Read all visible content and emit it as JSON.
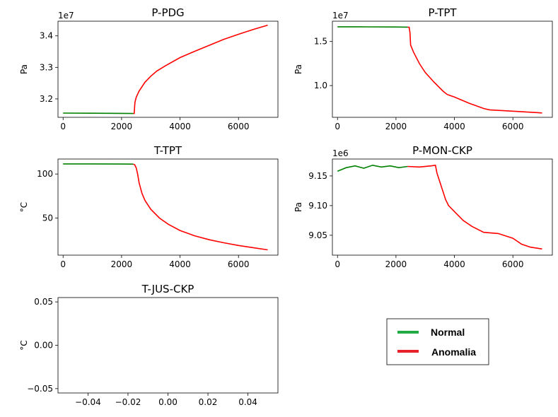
{
  "chart_data": [
    {
      "type": "line",
      "title": "P-PDG",
      "ylabel": "Pa",
      "y_multiplier": "1e7",
      "xlim": [
        -175,
        7350
      ],
      "ylim": [
        3.1415,
        3.4465
      ],
      "xticks": [
        "0",
        "2000",
        "4000",
        "6000"
      ],
      "yticks": [
        "3.2",
        "3.3",
        "3.4"
      ],
      "series": [
        {
          "name": "Normal",
          "color": "#008000",
          "points": [
            [
              0,
              3.155
            ],
            [
              1000,
              3.1545
            ],
            [
              2000,
              3.154
            ],
            [
              2400,
              3.1535
            ]
          ]
        },
        {
          "name": "Anomalia",
          "color": "#ff0000",
          "points": [
            [
              2400,
              3.1535
            ],
            [
              2430,
              3.1535
            ],
            [
              2440,
              3.165
            ],
            [
              2450,
              3.18
            ],
            [
              2460,
              3.19
            ],
            [
              2500,
              3.205
            ],
            [
              2600,
              3.225
            ],
            [
              2800,
              3.253
            ],
            [
              3000,
              3.272
            ],
            [
              3200,
              3.288
            ],
            [
              3500,
              3.305
            ],
            [
              4000,
              3.331
            ],
            [
              4500,
              3.351
            ],
            [
              5000,
              3.37
            ],
            [
              5500,
              3.389
            ],
            [
              6000,
              3.405
            ],
            [
              6500,
              3.42
            ],
            [
              7000,
              3.434
            ]
          ]
        }
      ]
    },
    {
      "type": "line",
      "title": "P-TPT",
      "ylabel": "Pa",
      "y_multiplier": "1e7",
      "xlim": [
        -175,
        7350
      ],
      "ylim": [
        0.64,
        1.73
      ],
      "xticks": [
        "0",
        "2000",
        "4000",
        "6000"
      ],
      "yticks": [
        "1.0",
        "1.5"
      ],
      "series": [
        {
          "name": "Normal",
          "color": "#008000",
          "points": [
            [
              0,
              1.667
            ],
            [
              1000,
              1.666
            ],
            [
              2000,
              1.664
            ],
            [
              2400,
              1.663
            ]
          ]
        },
        {
          "name": "Anomalia",
          "color": "#ff0000",
          "points": [
            [
              2400,
              1.663
            ],
            [
              2450,
              1.662
            ],
            [
              2480,
              1.6
            ],
            [
              2500,
              1.46
            ],
            [
              2600,
              1.38
            ],
            [
              2800,
              1.25
            ],
            [
              3000,
              1.15
            ],
            [
              3300,
              1.04
            ],
            [
              3600,
              0.94
            ],
            [
              3750,
              0.9
            ],
            [
              4000,
              0.87
            ],
            [
              4500,
              0.8
            ],
            [
              5000,
              0.74
            ],
            [
              5200,
              0.725
            ],
            [
              6000,
              0.71
            ],
            [
              7000,
              0.69
            ]
          ]
        }
      ]
    },
    {
      "type": "line",
      "title": "T-TPT",
      "ylabel": "°C",
      "xlim": [
        -175,
        7350
      ],
      "ylim": [
        8,
        117
      ],
      "xticks": [
        "0",
        "2000",
        "4000",
        "6000"
      ],
      "yticks": [
        "50",
        "100"
      ],
      "series": [
        {
          "name": "Normal",
          "color": "#008000",
          "points": [
            [
              0,
              111.5
            ],
            [
              1000,
              111.5
            ],
            [
              2000,
              111.3
            ],
            [
              2400,
              111.2
            ]
          ]
        },
        {
          "name": "Anomalia",
          "color": "#ff0000",
          "points": [
            [
              2400,
              111.2
            ],
            [
              2450,
              110.5
            ],
            [
              2500,
              107
            ],
            [
              2550,
              100
            ],
            [
              2600,
              90
            ],
            [
              2700,
              78
            ],
            [
              2800,
              70
            ],
            [
              3000,
              60
            ],
            [
              3300,
              50
            ],
            [
              3600,
              43
            ],
            [
              4000,
              36
            ],
            [
              4500,
              30
            ],
            [
              5000,
              25.5
            ],
            [
              5500,
              22
            ],
            [
              6000,
              19
            ],
            [
              6500,
              16.5
            ],
            [
              7000,
              14
            ]
          ]
        }
      ]
    },
    {
      "type": "line",
      "title": "P-MON-CKP",
      "ylabel": "Pa",
      "y_multiplier": "1e6",
      "xlim": [
        -175,
        7350
      ],
      "ylim": [
        9.0165,
        9.1785
      ],
      "xticks": [
        "0",
        "2000",
        "4000",
        "6000"
      ],
      "yticks": [
        "9.05",
        "9.10",
        "9.15"
      ],
      "series": [
        {
          "name": "Normal",
          "color": "#008000",
          "points": [
            [
              0,
              9.158
            ],
            [
              300,
              9.164
            ],
            [
              600,
              9.167
            ],
            [
              900,
              9.163
            ],
            [
              1200,
              9.168
            ],
            [
              1500,
              9.165
            ],
            [
              1800,
              9.167
            ],
            [
              2100,
              9.164
            ],
            [
              2400,
              9.166
            ]
          ]
        },
        {
          "name": "Anomalia",
          "color": "#ff0000",
          "points": [
            [
              2400,
              9.166
            ],
            [
              2800,
              9.165
            ],
            [
              3200,
              9.167
            ],
            [
              3350,
              9.168
            ],
            [
              3400,
              9.155
            ],
            [
              3500,
              9.14
            ],
            [
              3600,
              9.125
            ],
            [
              3700,
              9.11
            ],
            [
              3800,
              9.1
            ],
            [
              4000,
              9.09
            ],
            [
              4300,
              9.075
            ],
            [
              4600,
              9.065
            ],
            [
              5000,
              9.055
            ],
            [
              5500,
              9.053
            ],
            [
              6000,
              9.045
            ],
            [
              6300,
              9.035
            ],
            [
              6600,
              9.03
            ],
            [
              7000,
              9.027
            ]
          ]
        }
      ]
    },
    {
      "type": "line",
      "title": "T-JUS-CKP",
      "ylabel": "°C",
      "xlim": [
        -0.055,
        0.055
      ],
      "ylim": [
        -0.055,
        0.055
      ],
      "xticks": [
        "−0.04",
        "−0.02",
        "0.00",
        "0.02",
        "0.04"
      ],
      "yticks": [
        "−0.05",
        "0.00",
        "0.05"
      ],
      "series": []
    }
  ],
  "legend": {
    "items": [
      {
        "label": "Normal",
        "color": "#22aa44"
      },
      {
        "label": "Anomalia",
        "color": "#e8202a"
      }
    ]
  }
}
